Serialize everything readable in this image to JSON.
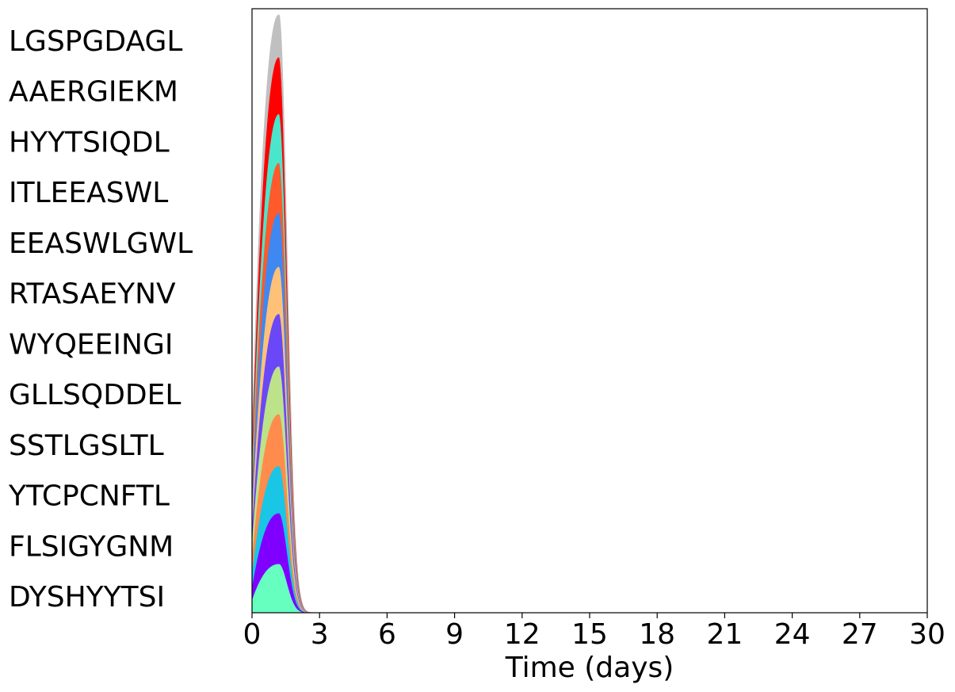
{
  "chart_data": {
    "type": "area",
    "stacked": true,
    "xlabel": "Time (days)",
    "ylabel": "",
    "xlim": [
      0,
      30
    ],
    "ylim": [
      0,
      1
    ],
    "x_ticks": [
      0,
      3,
      6,
      9,
      12,
      15,
      18,
      21,
      24,
      27,
      30
    ],
    "legend_position": "left",
    "legend_labels_top_to_bottom": [
      "LGSPGDAGL",
      "AAERGIEKM",
      "HYYTSIQDL",
      "ITLEEASWL",
      "EEASWLGWL",
      "RTASAEYNV",
      "WYQEEINGI",
      "GLLSQDDEL",
      "SSTLGSLTL",
      "YTCPCNFTL",
      "FLSIGYGNM",
      "DYSHYYTSI"
    ],
    "peak_day": 1.2,
    "series": [
      {
        "name": "DYSHYYTSI",
        "color": "#66ffc0",
        "start": 0.022,
        "peak": 0.081
      },
      {
        "name": "FLSIGYGNM",
        "color": "#8000ff",
        "start": 0.022,
        "peak": 0.084
      },
      {
        "name": "YTCPCNFTL",
        "color": "#19c6e6",
        "start": 0.024,
        "peak": 0.078
      },
      {
        "name": "SSTLGSLTL",
        "color": "#ff8c4d",
        "start": 0.027,
        "peak": 0.086
      },
      {
        "name": "GLLSQDDEL",
        "color": "#bce38a",
        "start": 0.025,
        "peak": 0.079
      },
      {
        "name": "WYQEEINGI",
        "color": "#6a48f7",
        "start": 0.024,
        "peak": 0.087
      },
      {
        "name": "RTASAEYNV",
        "color": "#ffc178",
        "start": 0.023,
        "peak": 0.078
      },
      {
        "name": "EEASWLGWL",
        "color": "#3f88f1",
        "start": 0.028,
        "peak": 0.089
      },
      {
        "name": "ITLEEASWL",
        "color": "#ff5a2c",
        "start": 0.025,
        "peak": 0.083
      },
      {
        "name": "HYYTSIQDL",
        "color": "#4ae6cc",
        "start": 0.027,
        "peak": 0.081
      },
      {
        "name": "AAERGIEKM",
        "color": "#ff0000",
        "start": 0.03,
        "peak": 0.094
      },
      {
        "name": "LGSPGDAGL",
        "color": "#c0c0c0",
        "start": 0.023,
        "peak": 0.07
      }
    ]
  }
}
